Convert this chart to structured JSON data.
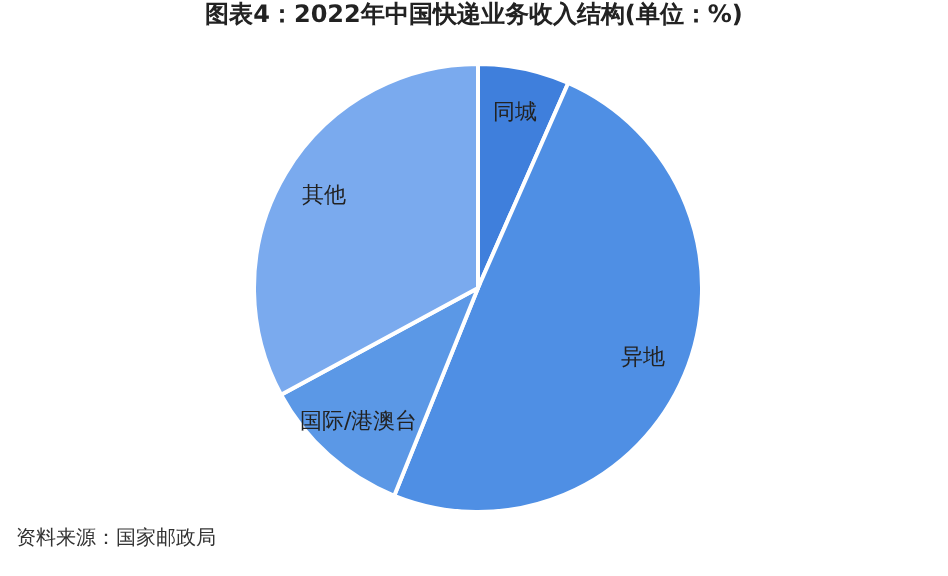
{
  "chart_data": {
    "type": "pie",
    "title": "图表4：2022年中国快递业务收入结构(单位：%)",
    "categories": [
      "同城",
      "异地",
      "国际/港澳台",
      "其他"
    ],
    "values": [
      6.6,
      49.5,
      11.0,
      32.9
    ],
    "colors": [
      "#3f7fdc",
      "#4f8fe4",
      "#5b98e6",
      "#7aaaee"
    ],
    "annotations": [
      "资料来源：国家邮政局"
    ]
  }
}
